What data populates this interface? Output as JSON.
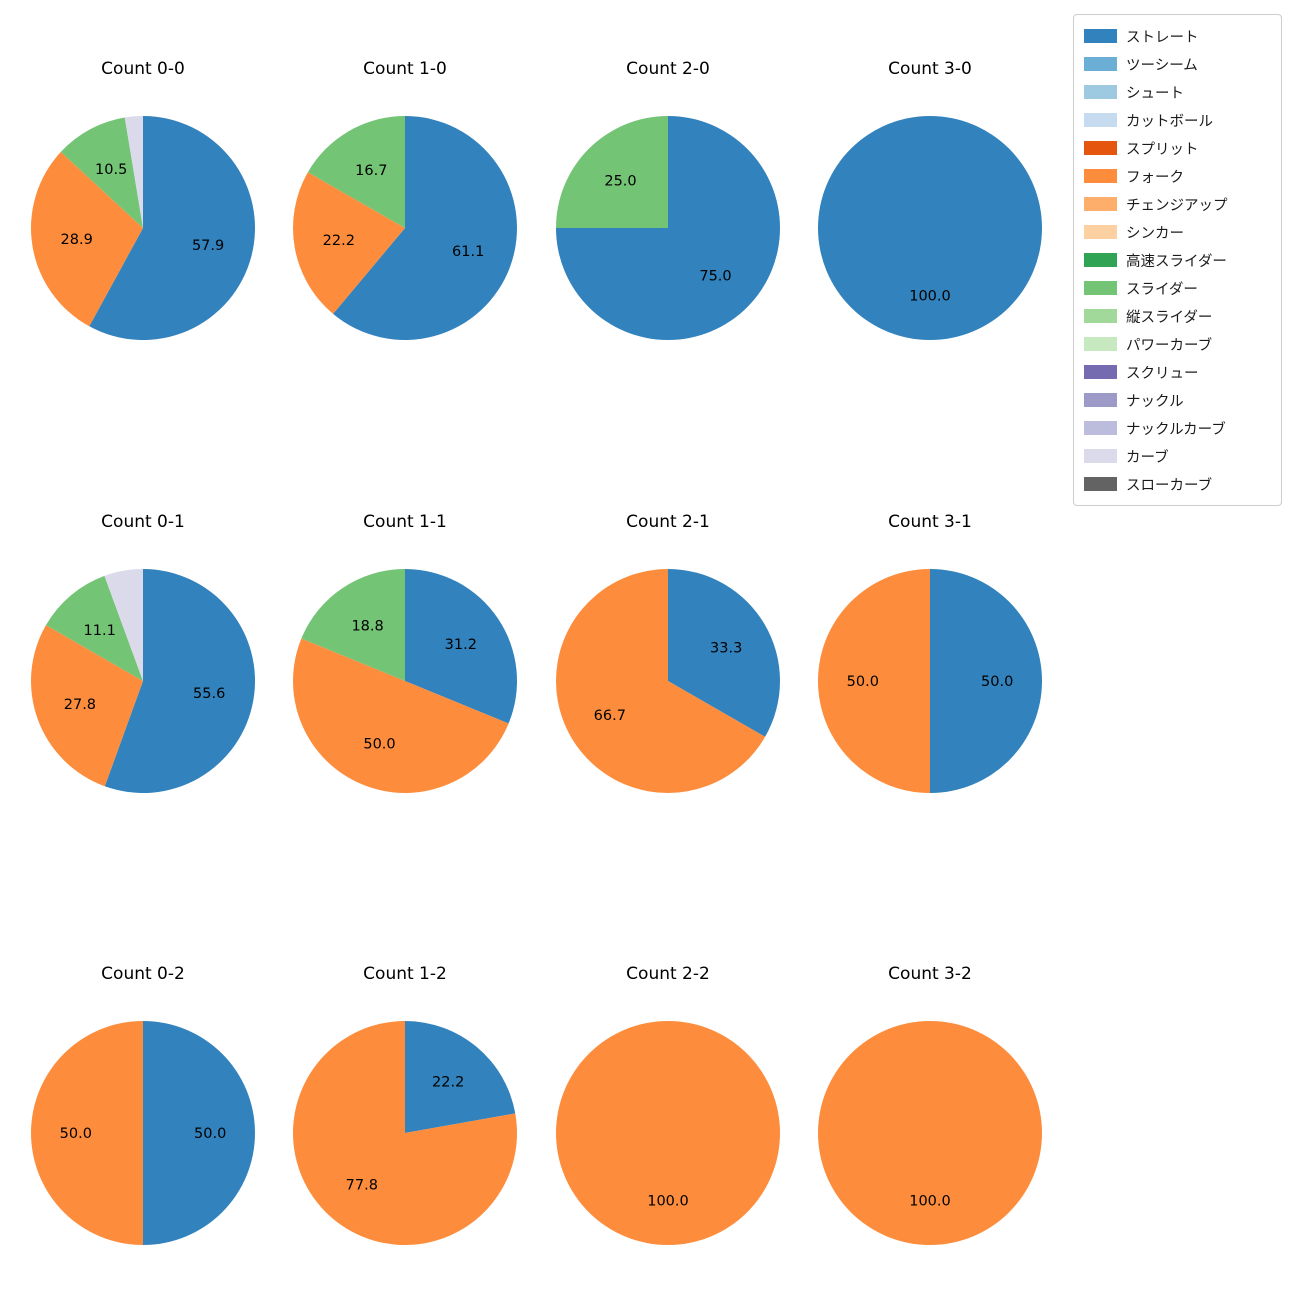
{
  "figure": {
    "background_color": "#ffffff",
    "text_color": "#000000"
  },
  "legend": {
    "position": "top-right",
    "items": [
      {
        "label": "ストレート",
        "color": "#3182bd"
      },
      {
        "label": "ツーシーム",
        "color": "#6baed6"
      },
      {
        "label": "シュート",
        "color": "#9ecae1"
      },
      {
        "label": "カットボール",
        "color": "#c6dbef"
      },
      {
        "label": "スプリット",
        "color": "#e6550d"
      },
      {
        "label": "フォーク",
        "color": "#fd8d3c"
      },
      {
        "label": "チェンジアップ",
        "color": "#fdae6b"
      },
      {
        "label": "シンカー",
        "color": "#fdd0a2"
      },
      {
        "label": "高速スライダー",
        "color": "#31a354"
      },
      {
        "label": "スライダー",
        "color": "#74c476"
      },
      {
        "label": "縦スライダー",
        "color": "#a1d99b"
      },
      {
        "label": "パワーカーブ",
        "color": "#c7e9c0"
      },
      {
        "label": "スクリュー",
        "color": "#756bb1"
      },
      {
        "label": "ナックル",
        "color": "#9e9ac8"
      },
      {
        "label": "ナックルカーブ",
        "color": "#bcbddc"
      },
      {
        "label": "カーブ",
        "color": "#dadaeb"
      },
      {
        "label": "スローカーブ",
        "color": "#636363"
      }
    ]
  },
  "chart_data": {
    "type": "pie",
    "unit": "percent",
    "grid": {
      "rows": 3,
      "cols": 4
    },
    "start_angle_deg": 90,
    "direction": "clockwise",
    "pct_label_distance": 0.6,
    "charts": [
      {
        "title": "Count 0-0",
        "slices": [
          {
            "label": "ストレート",
            "value": 57.9,
            "show_pct": true
          },
          {
            "label": "フォーク",
            "value": 28.9,
            "show_pct": true
          },
          {
            "label": "スライダー",
            "value": 10.5,
            "show_pct": true
          },
          {
            "label": "カーブ",
            "value": 2.6,
            "show_pct": false
          }
        ]
      },
      {
        "title": "Count 1-0",
        "slices": [
          {
            "label": "ストレート",
            "value": 61.1,
            "show_pct": true
          },
          {
            "label": "フォーク",
            "value": 22.2,
            "show_pct": true
          },
          {
            "label": "スライダー",
            "value": 16.7,
            "show_pct": true
          }
        ]
      },
      {
        "title": "Count 2-0",
        "slices": [
          {
            "label": "ストレート",
            "value": 75.0,
            "show_pct": true
          },
          {
            "label": "スライダー",
            "value": 25.0,
            "show_pct": true
          }
        ]
      },
      {
        "title": "Count 3-0",
        "slices": [
          {
            "label": "ストレート",
            "value": 100.0,
            "show_pct": true
          }
        ]
      },
      {
        "title": "Count 0-1",
        "slices": [
          {
            "label": "ストレート",
            "value": 55.6,
            "show_pct": true
          },
          {
            "label": "フォーク",
            "value": 27.8,
            "show_pct": true
          },
          {
            "label": "スライダー",
            "value": 11.1,
            "show_pct": true
          },
          {
            "label": "カーブ",
            "value": 5.6,
            "show_pct": false
          }
        ]
      },
      {
        "title": "Count 1-1",
        "slices": [
          {
            "label": "ストレート",
            "value": 31.2,
            "show_pct": true
          },
          {
            "label": "フォーク",
            "value": 50.0,
            "show_pct": true
          },
          {
            "label": "スライダー",
            "value": 18.8,
            "show_pct": true
          }
        ]
      },
      {
        "title": "Count 2-1",
        "slices": [
          {
            "label": "ストレート",
            "value": 33.3,
            "show_pct": true
          },
          {
            "label": "フォーク",
            "value": 66.7,
            "show_pct": true
          }
        ]
      },
      {
        "title": "Count 3-1",
        "slices": [
          {
            "label": "ストレート",
            "value": 50.0,
            "show_pct": true
          },
          {
            "label": "フォーク",
            "value": 50.0,
            "show_pct": true
          }
        ]
      },
      {
        "title": "Count 0-2",
        "slices": [
          {
            "label": "ストレート",
            "value": 50.0,
            "show_pct": true
          },
          {
            "label": "フォーク",
            "value": 50.0,
            "show_pct": true
          }
        ]
      },
      {
        "title": "Count 1-2",
        "slices": [
          {
            "label": "ストレート",
            "value": 22.2,
            "show_pct": true
          },
          {
            "label": "フォーク",
            "value": 77.8,
            "show_pct": true
          }
        ]
      },
      {
        "title": "Count 2-2",
        "slices": [
          {
            "label": "フォーク",
            "value": 100.0,
            "show_pct": true
          }
        ]
      },
      {
        "title": "Count 3-2",
        "slices": [
          {
            "label": "フォーク",
            "value": 100.0,
            "show_pct": true
          }
        ]
      }
    ]
  }
}
